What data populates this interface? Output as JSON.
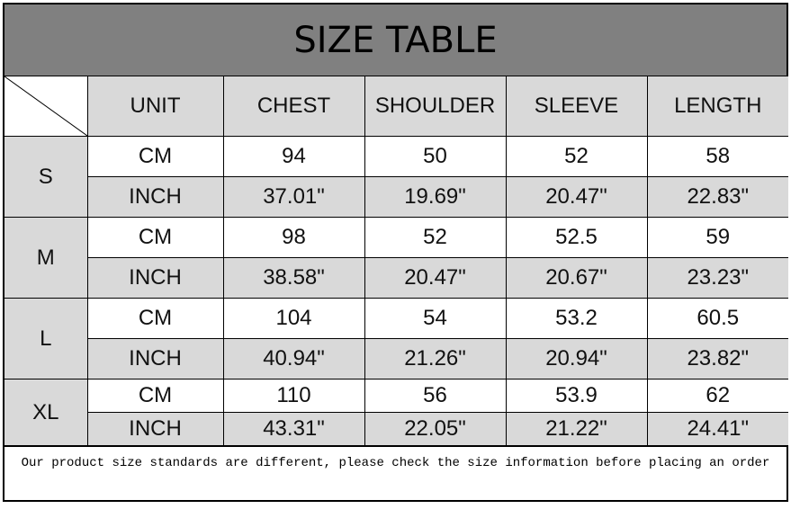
{
  "title": "SIZE TABLE",
  "headers": [
    "UNIT",
    "CHEST",
    "SHOULDER",
    "SLEEVE",
    "LENGTH"
  ],
  "sizes": [
    {
      "size": "S",
      "cm": {
        "unit": "CM",
        "values": [
          "94",
          "50",
          "52",
          "58"
        ]
      },
      "inch": {
        "unit": "INCH",
        "values": [
          "37.01\"",
          "19.69\"",
          "20.47\"",
          "22.83\""
        ]
      }
    },
    {
      "size": "M",
      "cm": {
        "unit": "CM",
        "values": [
          "98",
          "52",
          "52.5",
          "59"
        ]
      },
      "inch": {
        "unit": "INCH",
        "values": [
          "38.58\"",
          "20.47\"",
          "20.67\"",
          "23.23\""
        ]
      }
    },
    {
      "size": "L",
      "cm": {
        "unit": "CM",
        "values": [
          "104",
          "54",
          "53.2",
          "60.5"
        ]
      },
      "inch": {
        "unit": "INCH",
        "values": [
          "40.94\"",
          "21.26\"",
          "20.94\"",
          "23.82\""
        ]
      }
    },
    {
      "size": "XL",
      "cm": {
        "unit": "CM",
        "values": [
          "110",
          "56",
          "53.9",
          "62"
        ]
      },
      "inch": {
        "unit": "INCH",
        "values": [
          "43.31\"",
          "22.05\"",
          "21.22\"",
          "24.41\""
        ]
      }
    }
  ],
  "note": "Our product size standards are different, please check the size information before placing an order",
  "colors": {
    "title_bg": "#808080",
    "header_bg": "#d9d9d9",
    "row_bg": "#ffffff"
  }
}
